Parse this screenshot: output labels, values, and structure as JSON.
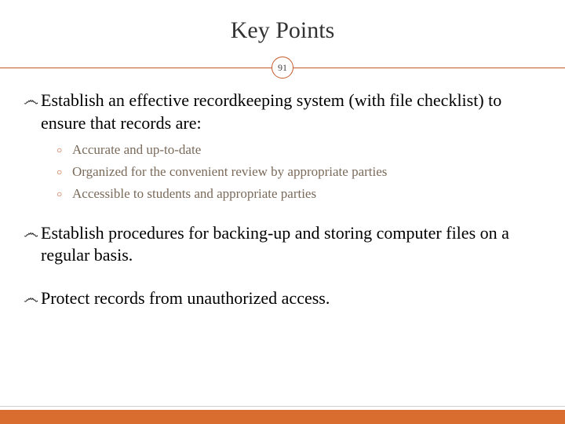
{
  "slide": {
    "title": "Key Points",
    "page_number": "91",
    "bullets": [
      {
        "text": "Establish an effective recordkeeping system (with file checklist)  to ensure that records are:",
        "sub": [
          "Accurate and  up-to-date",
          "Organized for the convenient review by appropriate parties",
          "Accessible to students and appropriate parties"
        ]
      },
      {
        "text": "Establish procedures for backing-up and storing computer files on a regular basis.",
        "sub": []
      },
      {
        "text": "Protect records from unauthorized access.",
        "sub": []
      }
    ]
  },
  "colors": {
    "accent": "#c55a2b",
    "footer": "#d96c2f",
    "sub_text": "#7a6a5a",
    "main_text": "#000000",
    "background": "#ffffff"
  }
}
